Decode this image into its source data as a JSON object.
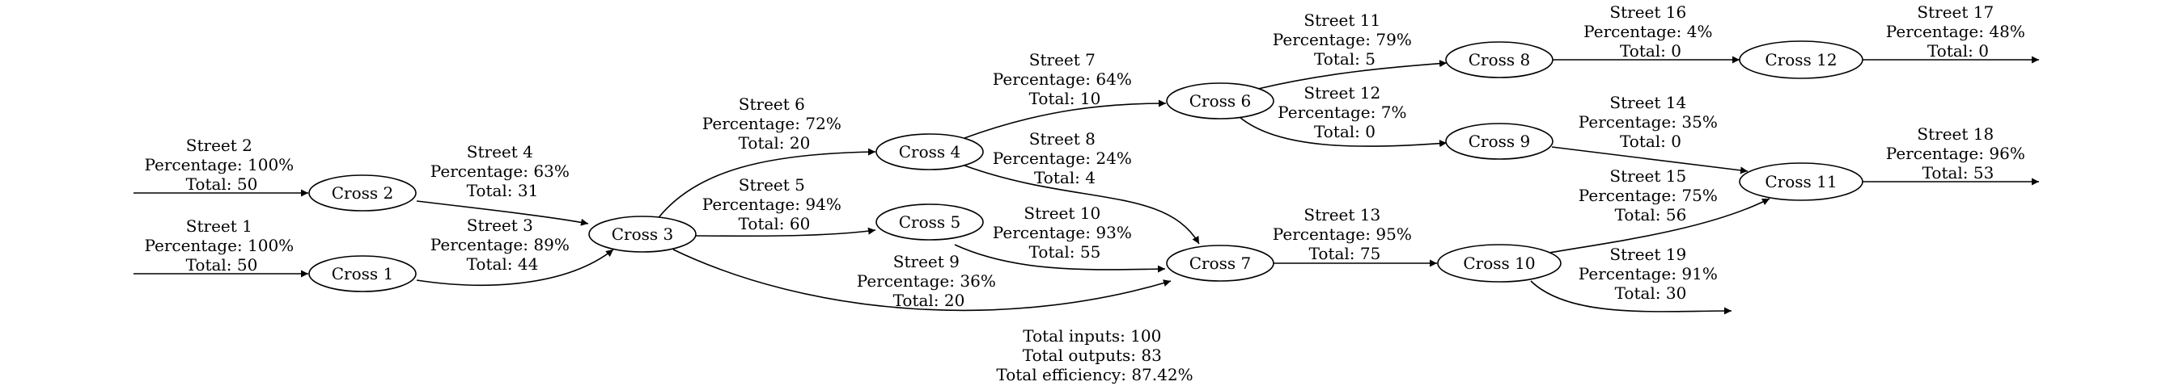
{
  "nodes": {
    "c1": "Cross 1",
    "c2": "Cross 2",
    "c3": "Cross 3",
    "c4": "Cross 4",
    "c5": "Cross 5",
    "c6": "Cross 6",
    "c7": "Cross 7",
    "c8": "Cross 8",
    "c9": "Cross 9",
    "c10": "Cross 10",
    "c11": "Cross 11",
    "c12": "Cross 12"
  },
  "edges": {
    "s1": {
      "street": "Street 1",
      "percentage": "Percentage: 100%",
      "total": "Total: 50"
    },
    "s2": {
      "street": "Street 2",
      "percentage": "Percentage: 100%",
      "total": "Total: 50"
    },
    "s3": {
      "street": "Street 3",
      "percentage": "Percentage: 89%",
      "total": "Total: 44"
    },
    "s4": {
      "street": "Street 4",
      "percentage": "Percentage: 63%",
      "total": "Total: 31"
    },
    "s5": {
      "street": "Street 5",
      "percentage": "Percentage: 94%",
      "total": "Total: 60"
    },
    "s6": {
      "street": "Street 6",
      "percentage": "Percentage: 72%",
      "total": "Total: 20"
    },
    "s7": {
      "street": "Street 7",
      "percentage": "Percentage: 64%",
      "total": "Total: 10"
    },
    "s8": {
      "street": "Street 8",
      "percentage": "Percentage: 24%",
      "total": "Total: 4"
    },
    "s9": {
      "street": "Street 9",
      "percentage": "Percentage: 36%",
      "total": "Total: 20"
    },
    "s10": {
      "street": "Street 10",
      "percentage": "Percentage: 93%",
      "total": "Total: 55"
    },
    "s11": {
      "street": "Street 11",
      "percentage": "Percentage: 79%",
      "total": "Total: 5"
    },
    "s12": {
      "street": "Street 12",
      "percentage": "Percentage: 7%",
      "total": "Total: 0"
    },
    "s13": {
      "street": "Street 13",
      "percentage": "Percentage: 95%",
      "total": "Total: 75"
    },
    "s14": {
      "street": "Street 14",
      "percentage": "Percentage: 35%",
      "total": "Total: 0"
    },
    "s15": {
      "street": "Street 15",
      "percentage": "Percentage: 75%",
      "total": "Total: 56"
    },
    "s16": {
      "street": "Street 16",
      "percentage": "Percentage: 4%",
      "total": "Total: 0"
    },
    "s17": {
      "street": "Street 17",
      "percentage": "Percentage: 48%",
      "total": "Total: 0"
    },
    "s18": {
      "street": "Street 18",
      "percentage": "Percentage: 96%",
      "total": "Total: 53"
    },
    "s19": {
      "street": "Street 19",
      "percentage": "Percentage: 91%",
      "total": "Total: 30"
    }
  },
  "summary": {
    "inputs": "Total inputs: 100",
    "outputs": "Total outputs: 83",
    "efficiency": "Total efficiency: 87.42%"
  }
}
